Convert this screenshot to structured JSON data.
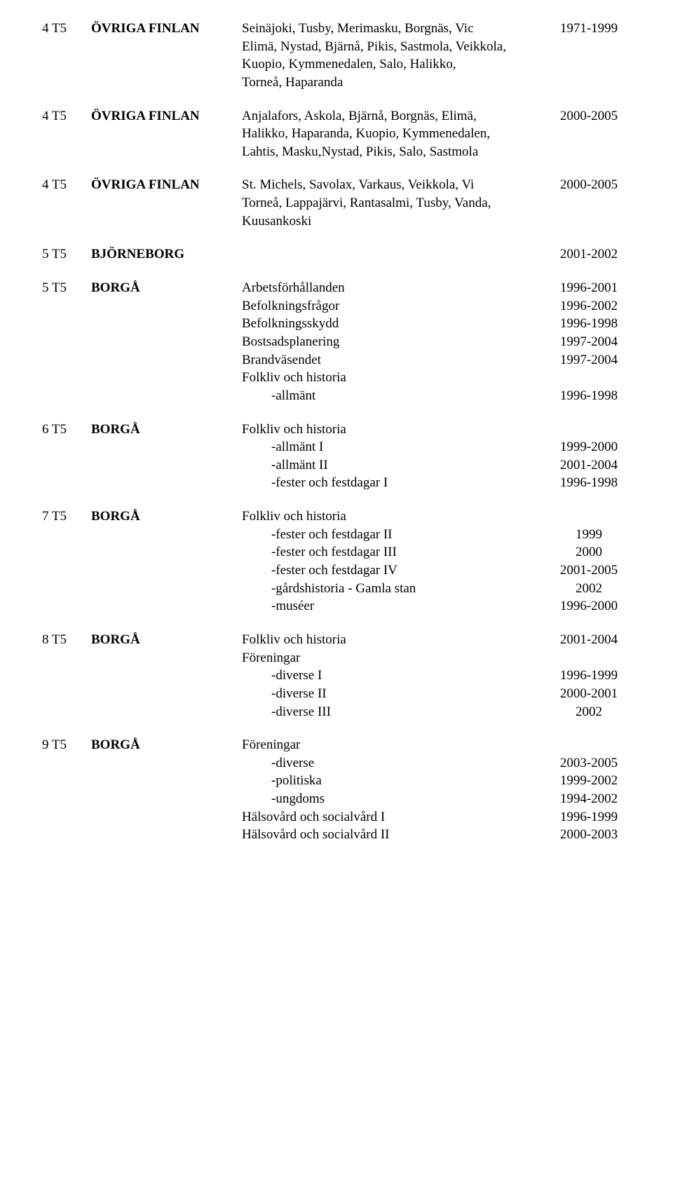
{
  "sections": [
    {
      "code": "4 T5",
      "loc": "ÖVRIGA FINLAN",
      "loc_bold": true,
      "rows": [
        {
          "desc": "Seinäjoki, Tusby, Merimasku, Borgnäs, Vic",
          "year": "1971-1999"
        },
        {
          "desc": "Elimä, Nystad, Bjärnå, Pikis, Sastmola, Veikkola,"
        },
        {
          "desc": "Kuopio, Kymmenedalen, Salo, Halikko,"
        },
        {
          "desc": "Torneå, Haparanda"
        }
      ]
    },
    {
      "code": "4 T5",
      "loc": "ÖVRIGA FINLAN",
      "loc_bold": true,
      "rows": [
        {
          "desc": "Anjalafors, Askola, Bjärnå, Borgnäs, Elimä,",
          "year": "2000-2005"
        },
        {
          "desc": "Halikko, Haparanda, Kuopio, Kymmenedalen,"
        },
        {
          "desc": "Lahtis, Masku,Nystad, Pikis, Salo, Sastmola"
        }
      ]
    },
    {
      "code": "4 T5",
      "loc": "ÖVRIGA FINLAN",
      "loc_bold": true,
      "rows": [
        {
          "desc": "St. Michels, Savolax, Varkaus, Veikkola, Vi",
          "year": "2000-2005"
        },
        {
          "desc": "Torneå, Lappajärvi, Rantasalmi, Tusby, Vanda,"
        },
        {
          "desc": "Kuusankoski"
        }
      ]
    },
    {
      "code": "5 T5",
      "loc": "BJÖRNEBORG",
      "loc_bold": true,
      "rows": [
        {
          "desc": "",
          "year": "2001-2002"
        }
      ]
    },
    {
      "code": "5 T5",
      "loc": "BORGÅ",
      "loc_bold": true,
      "rows": [
        {
          "desc": "Arbetsförhållanden",
          "year": "1996-2001"
        },
        {
          "desc": "Befolkningsfrågor",
          "year": "1996-2002"
        },
        {
          "desc": "Befolkningsskydd",
          "year": "1996-1998"
        },
        {
          "desc": "Bostsadsplanering",
          "year": "1997-2004"
        },
        {
          "desc": "Brandväsendet",
          "year": "1997-2004"
        },
        {
          "desc": "Folkliv och historia"
        },
        {
          "desc": "-allmänt",
          "year": "1996-1998",
          "indent": true
        }
      ]
    },
    {
      "code": "6 T5",
      "loc": "BORGÅ",
      "loc_bold": true,
      "rows": [
        {
          "desc": "Folkliv och historia"
        },
        {
          "desc": "-allmänt I",
          "year": "1999-2000",
          "indent": true
        },
        {
          "desc": "-allmänt II",
          "year": "2001-2004",
          "indent": true
        },
        {
          "desc": "-fester och festdagar I",
          "year": "1996-1998",
          "indent": true
        }
      ]
    },
    {
      "code": "7 T5",
      "loc": "BORGÅ",
      "loc_bold": true,
      "rows": [
        {
          "desc": "Folkliv och historia"
        },
        {
          "desc": "-fester och festdagar II",
          "year": "1999",
          "indent": true
        },
        {
          "desc": "-fester och festdagar III",
          "year": "2000",
          "indent": true
        },
        {
          "desc": "-fester och festdagar IV",
          "year": "2001-2005",
          "indent": true
        },
        {
          "desc": "-gårdshistoria - Gamla stan",
          "year": "2002",
          "indent": true
        },
        {
          "desc": "-muséer",
          "year": "1996-2000",
          "indent": true
        }
      ]
    },
    {
      "code": "8 T5",
      "loc": "BORGÅ",
      "loc_bold": true,
      "rows": [
        {
          "desc": "Folkliv och historia",
          "year": "2001-2004"
        },
        {
          "desc": "Föreningar"
        },
        {
          "desc": "-diverse I",
          "year": "1996-1999",
          "indent": true
        },
        {
          "desc": "-diverse II",
          "year": "2000-2001",
          "indent": true
        },
        {
          "desc": "-diverse III",
          "year": "2002",
          "indent": true
        }
      ]
    },
    {
      "code": "9 T5",
      "loc": "BORGÅ",
      "loc_bold": true,
      "rows": [
        {
          "desc": "Föreningar"
        },
        {
          "desc": "-diverse",
          "year": "2003-2005",
          "indent": true
        },
        {
          "desc": "-politiska",
          "year": "1999-2002",
          "indent": true
        },
        {
          "desc": "-ungdoms",
          "year": "1994-2002",
          "indent": true
        },
        {
          "desc": "Hälsovård och socialvård I",
          "year": "1996-1999"
        },
        {
          "desc": "Hälsovård och socialvård II",
          "year": "2000-2003"
        }
      ]
    }
  ]
}
